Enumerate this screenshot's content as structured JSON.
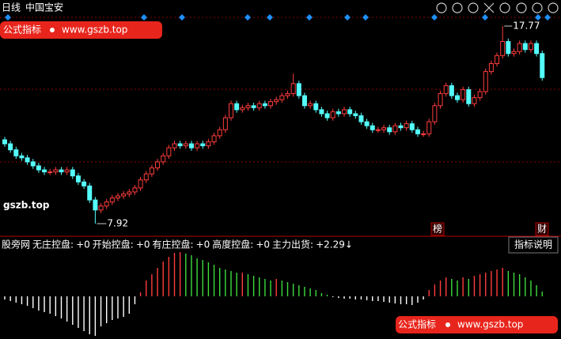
{
  "chart_data": {
    "type": "candlestick",
    "period": "日线",
    "title": "中国宝安",
    "open": [
      12.1,
      11.9,
      11.6,
      11.3,
      11.2,
      11.0,
      10.8,
      10.6,
      10.5,
      10.5,
      10.6,
      10.5,
      10.6,
      10.3,
      10.0,
      9.8,
      9.1,
      8.6,
      8.8,
      9.0,
      9.2,
      9.3,
      9.4,
      9.5,
      9.7,
      10.1,
      10.4,
      10.7,
      11.0,
      11.3,
      11.7,
      11.9,
      11.8,
      11.9,
      11.7,
      11.9,
      11.8,
      12.0,
      12.3,
      12.6,
      13.2,
      13.9,
      13.6,
      13.7,
      13.8,
      13.7,
      13.9,
      13.8,
      14.0,
      14.1,
      14.3,
      14.4,
      14.9,
      14.3,
      13.8,
      13.9,
      13.6,
      13.4,
      13.2,
      13.5,
      13.4,
      13.6,
      13.4,
      13.3,
      13.0,
      12.8,
      12.6,
      12.6,
      12.7,
      12.5,
      12.8,
      12.7,
      12.9,
      12.6,
      12.4,
      12.4,
      13.0,
      13.8,
      14.4,
      14.8,
      14.3,
      14.1,
      14.6,
      13.9,
      14.2,
      14.5,
      15.5,
      15.9,
      16.3,
      17.0,
      16.4,
      16.5,
      16.9,
      16.6,
      16.9,
      16.4
    ],
    "high": [
      12.25,
      12.05,
      11.75,
      11.45,
      11.35,
      11.15,
      10.95,
      10.75,
      10.65,
      10.75,
      10.75,
      10.75,
      10.75,
      10.45,
      10.15,
      9.95,
      9.25,
      8.95,
      9.15,
      9.35,
      9.45,
      9.55,
      9.65,
      9.85,
      10.25,
      10.55,
      10.85,
      11.15,
      11.45,
      11.85,
      12.05,
      12.05,
      12.05,
      12.05,
      12.05,
      12.05,
      12.15,
      12.45,
      12.75,
      13.35,
      14.05,
      14.05,
      13.85,
      13.95,
      13.95,
      14.05,
      14.05,
      14.15,
      14.25,
      14.45,
      14.55,
      15.4,
      15.05,
      14.45,
      14.05,
      14.05,
      13.75,
      13.55,
      13.65,
      13.65,
      13.75,
      13.75,
      13.55,
      13.45,
      13.15,
      12.95,
      12.75,
      12.85,
      12.85,
      12.95,
      12.95,
      13.05,
      13.05,
      12.75,
      12.55,
      13.15,
      13.95,
      14.55,
      14.95,
      14.95,
      14.45,
      14.75,
      14.75,
      14.35,
      14.65,
      15.65,
      16.05,
      16.45,
      17.77,
      17.15,
      16.65,
      17.05,
      17.05,
      17.05,
      17.05,
      16.55
    ],
    "low": [
      11.75,
      11.45,
      11.15,
      11.05,
      10.85,
      10.65,
      10.45,
      10.35,
      10.35,
      10.35,
      10.35,
      10.35,
      10.15,
      9.85,
      9.65,
      8.95,
      7.92,
      8.45,
      8.65,
      8.85,
      9.05,
      9.15,
      9.25,
      9.35,
      9.55,
      9.95,
      10.25,
      10.55,
      10.85,
      11.15,
      11.55,
      11.65,
      11.65,
      11.55,
      11.55,
      11.65,
      11.65,
      11.85,
      12.15,
      12.45,
      13.05,
      13.45,
      13.45,
      13.55,
      13.55,
      13.55,
      13.65,
      13.65,
      13.85,
      13.95,
      14.15,
      14.25,
      14.15,
      13.65,
      13.65,
      13.45,
      13.25,
      13.05,
      13.05,
      13.25,
      13.25,
      13.25,
      13.15,
      12.85,
      12.65,
      12.45,
      12.45,
      12.45,
      12.35,
      12.35,
      12.55,
      12.55,
      12.45,
      12.25,
      12.25,
      12.25,
      12.85,
      13.65,
      14.25,
      14.15,
      13.95,
      13.95,
      13.75,
      13.75,
      14.05,
      14.35,
      15.35,
      15.75,
      16.15,
      16.25,
      16.25,
      16.35,
      16.45,
      16.45,
      16.25,
      15.05
    ],
    "close": [
      11.9,
      11.6,
      11.3,
      11.2,
      11.0,
      10.8,
      10.6,
      10.5,
      10.5,
      10.6,
      10.5,
      10.6,
      10.3,
      10.0,
      9.8,
      9.1,
      8.6,
      8.8,
      9.0,
      9.2,
      9.3,
      9.4,
      9.5,
      9.7,
      10.1,
      10.4,
      10.7,
      11.0,
      11.3,
      11.7,
      11.9,
      11.8,
      11.9,
      11.7,
      11.9,
      11.8,
      12.0,
      12.3,
      12.6,
      13.2,
      13.9,
      13.6,
      13.7,
      13.8,
      13.7,
      13.9,
      13.8,
      14.0,
      14.1,
      14.3,
      14.4,
      14.9,
      14.3,
      13.8,
      13.9,
      13.6,
      13.4,
      13.2,
      13.5,
      13.4,
      13.6,
      13.4,
      13.3,
      13.0,
      12.8,
      12.6,
      12.6,
      12.7,
      12.5,
      12.8,
      12.7,
      12.9,
      12.6,
      12.4,
      12.4,
      13.0,
      13.8,
      14.4,
      14.8,
      14.3,
      14.1,
      14.6,
      13.9,
      14.2,
      14.5,
      15.5,
      15.9,
      16.3,
      17.0,
      16.4,
      16.5,
      16.9,
      16.6,
      16.9,
      16.4,
      15.2
    ],
    "ylim": [
      7.33,
      19.07
    ],
    "up_color": "#ff3c3c",
    "down_color": "#54fcfc",
    "annotations": {
      "low": 7.92,
      "high": 17.77
    },
    "tags": [
      "榜",
      "财"
    ],
    "badge": {
      "label": "公式指标",
      "url": "www.gszb.top"
    },
    "watermark": "gszb.top",
    "indicator": {
      "name": "股旁网",
      "legend": [
        {
          "name": "无庄控盘:",
          "value_label": "+0",
          "color": "#ffffff"
        },
        {
          "name": "开始控盘:",
          "value_label": "+0",
          "color": "#ffff00"
        },
        {
          "name": "有庄控盘:",
          "value_label": "+0",
          "color": "#ff3c3c"
        },
        {
          "name": "高度控盘:",
          "value_label": "+0",
          "color": "#ff50ff"
        },
        {
          "name": "主力出货:",
          "value_label": "+2.29",
          "color": "#3cff3c"
        }
      ],
      "arrow": "↓",
      "button": "指标说明",
      "values": [
        -4,
        -6,
        -8,
        -10,
        -12,
        -15,
        -18,
        -20,
        -22,
        -25,
        -28,
        -32,
        -36,
        -40,
        -44,
        -48,
        -50,
        -38,
        -34,
        -30,
        -28,
        -26,
        -22,
        -10,
        5,
        20,
        28,
        36,
        44,
        50,
        55,
        56,
        54,
        52,
        48,
        46,
        43,
        40,
        36,
        34,
        32,
        30,
        30,
        28,
        26,
        24,
        22,
        20,
        22,
        20,
        18,
        16,
        14,
        12,
        10,
        8,
        4,
        2,
        -1,
        -2,
        -3,
        -3,
        -4,
        -4,
        -5,
        -6,
        -6,
        -7,
        -8,
        -9,
        -10,
        -10,
        -11,
        -8,
        -4,
        8,
        15,
        20,
        24,
        22,
        20,
        24,
        22,
        26,
        28,
        30,
        32,
        34,
        36,
        32,
        30,
        28,
        24,
        20,
        14,
        6
      ],
      "ylim": [
        -54,
        56
      ],
      "rise_color": "#ff3c3c",
      "fall_color": "#3cdc3c",
      "negative_color": "#ffffff"
    }
  }
}
